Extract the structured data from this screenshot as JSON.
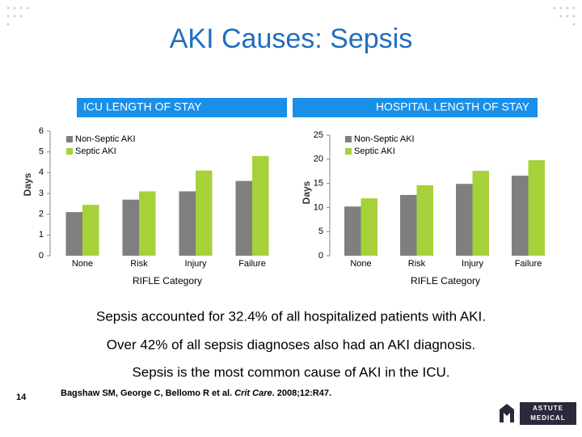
{
  "slide": {
    "title": "AKI Causes: Sepsis",
    "notes": [
      "Sepsis accounted for 32.4% of all hospitalized patients with AKI.",
      "Over 42% of all sepsis diagnoses also had an AKI diagnosis.",
      "Sepsis is the most common cause of AKI in the ICU."
    ],
    "citation": [
      "Bagshaw SM, George C, Bellomo R et al. ",
      "Crit Care",
      ". 2008;12:R47."
    ],
    "page_number": "14",
    "logo": [
      "ASTUTE",
      "MEDICAL"
    ]
  },
  "chart_data": [
    {
      "type": "bar",
      "title": "ICU LENGTH OF STAY",
      "xlabel": "RIFLE Category",
      "ylabel": "Days",
      "categories": [
        "None",
        "Risk",
        "Injury",
        "Failure"
      ],
      "series": [
        {
          "name": "Non-Septic AKI",
          "color": "#7f7f7f",
          "values": [
            2.1,
            2.7,
            3.1,
            3.6
          ]
        },
        {
          "name": "Septic AKI",
          "color": "#a6d13a",
          "values": [
            2.45,
            3.1,
            4.1,
            4.8
          ]
        }
      ],
      "ylim": [
        0,
        6
      ],
      "yticks": [
        0,
        1,
        2,
        3,
        4,
        5,
        6
      ],
      "legend": "upper left"
    },
    {
      "type": "bar",
      "title": "HOSPITAL LENGTH OF STAY",
      "xlabel": "RIFLE Category",
      "ylabel": "Days",
      "categories": [
        "None",
        "Risk",
        "Injury",
        "Failure"
      ],
      "series": [
        {
          "name": "Non-Septic AKI",
          "color": "#7f7f7f",
          "values": [
            10.2,
            12.6,
            14.9,
            16.6
          ]
        },
        {
          "name": "Septic AKI",
          "color": "#a6d13a",
          "values": [
            11.9,
            14.6,
            17.6,
            19.8
          ]
        }
      ],
      "ylim": [
        0,
        25
      ],
      "yticks": [
        0,
        5,
        10,
        15,
        20,
        25
      ],
      "legend": "upper left"
    }
  ]
}
